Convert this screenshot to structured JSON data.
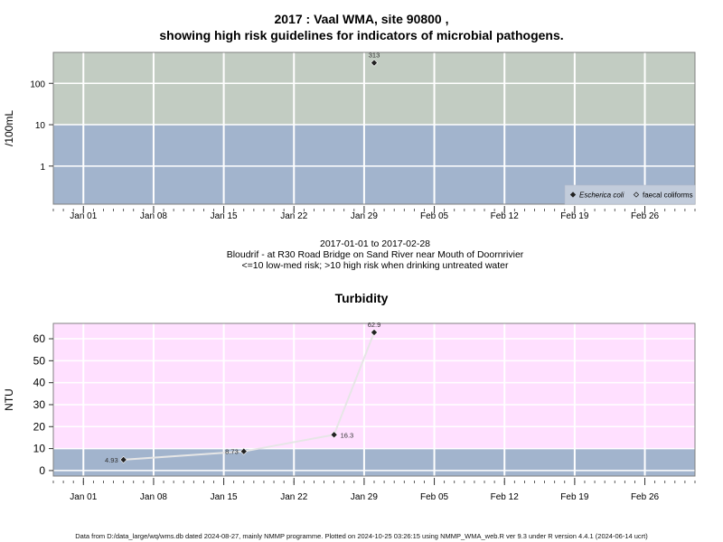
{
  "chart_data": [
    {
      "type": "scatter",
      "title": "2017 : Vaal WMA, site 90800 ,",
      "subtitle": "showing high risk guidelines for indicators of microbial pathogens.",
      "ylabel": "/100mL",
      "y_scale": "log",
      "ylim": [
        0.12,
        560
      ],
      "y_ticks": [
        {
          "value": 1,
          "label": "1"
        },
        {
          "value": 10,
          "label": "10"
        },
        {
          "value": 100,
          "label": "100"
        }
      ],
      "risk_bands": [
        {
          "from": 0.12,
          "to": 10,
          "color": "#a2b4cd",
          "meaning": "low-med risk"
        },
        {
          "from": 10,
          "to": 560,
          "color": "#c2ccc2",
          "meaning": "high risk"
        }
      ],
      "series": [
        {
          "name": "Escherica coli",
          "marker": "filled-diamond",
          "points": [
            {
              "x": "2017-01-30",
              "y": 313,
              "label": "313"
            }
          ]
        },
        {
          "name": "faecal coliforms",
          "marker": "open-diamond",
          "points": []
        }
      ],
      "legend_position": "bottom-right",
      "grid": true
    },
    {
      "type": "line",
      "title": "Turbidity",
      "ylabel": "NTU",
      "ylim": [
        -2.5,
        67
      ],
      "y_ticks": [
        {
          "value": 0,
          "label": "0"
        },
        {
          "value": 10,
          "label": "10"
        },
        {
          "value": 20,
          "label": "20"
        },
        {
          "value": 30,
          "label": "30"
        },
        {
          "value": 40,
          "label": "40"
        },
        {
          "value": 50,
          "label": "50"
        },
        {
          "value": 60,
          "label": "60"
        }
      ],
      "risk_bands": [
        {
          "from": -2.5,
          "to": 10,
          "color": "#a2b4cd"
        },
        {
          "from": 10,
          "to": 67,
          "color": "#ffe0ff"
        }
      ],
      "series": [
        {
          "points": [
            {
              "x": "2017-01-05",
              "y": 4.93,
              "label": "4.93",
              "label_side": "left"
            },
            {
              "x": "2017-01-17",
              "y": 8.73,
              "label": "8.73",
              "label_side": "left"
            },
            {
              "x": "2017-01-26",
              "y": 16.3,
              "label": "16.3",
              "label_side": "right"
            },
            {
              "x": "2017-01-30",
              "y": 62.9,
              "label": "62.9",
              "label_side": "top"
            }
          ]
        }
      ],
      "line_color": "#e6e6e6",
      "grid": true
    }
  ],
  "x_axis": {
    "range": [
      "2016-12-29",
      "2017-03-03"
    ],
    "ticks": [
      {
        "x": "2017-01-01",
        "label": "Jan 01"
      },
      {
        "x": "2017-01-08",
        "label": "Jan 08"
      },
      {
        "x": "2017-01-15",
        "label": "Jan 15"
      },
      {
        "x": "2017-01-22",
        "label": "Jan 22"
      },
      {
        "x": "2017-01-29",
        "label": "Jan 29"
      },
      {
        "x": "2017-02-05",
        "label": "Feb 05"
      },
      {
        "x": "2017-02-12",
        "label": "Feb 12"
      },
      {
        "x": "2017-02-19",
        "label": "Feb 19"
      },
      {
        "x": "2017-02-26",
        "label": "Feb 26"
      }
    ]
  },
  "caption": {
    "date_range": "2017-01-01 to 2017-02-28",
    "site_description": "Bloudrif - at R30 Road Bridge on Sand River near Mouth of Doornrivier",
    "risk_note": "<=10 low-med risk; >10 high risk when drinking untreated water"
  },
  "footer": "Data from D:/data_large/wq/wms.db dated 2024-08-27, mainly NMMP programme. Plotted on 2024-10-25 03:26:15 using NMMP_WMA_web.R ver 9.3 under R version 4.4.1 (2024-06-14 ucrt)",
  "colors": {
    "panel_border": "#808080",
    "grid": "#ffffff",
    "marker": "#222222"
  }
}
